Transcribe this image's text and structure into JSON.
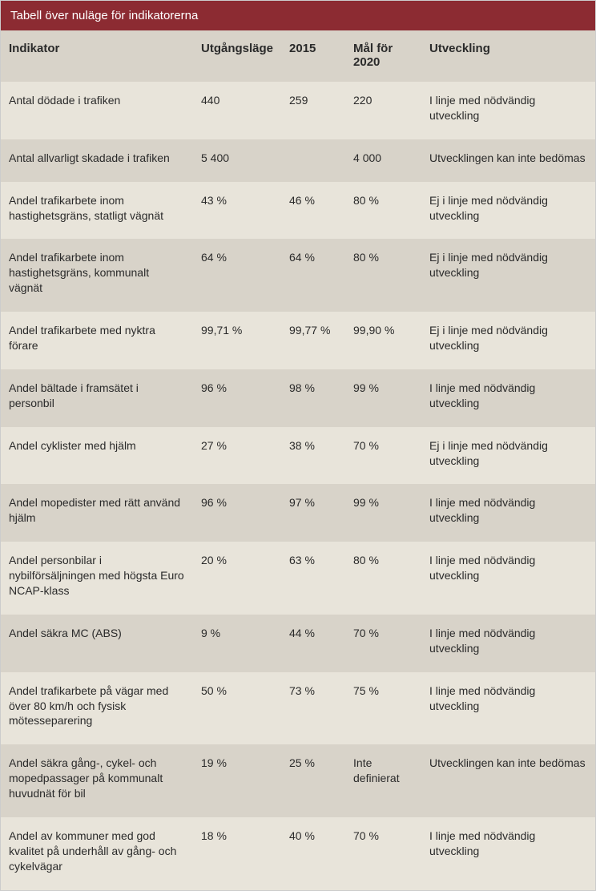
{
  "title": "Tabell över nuläge för indikatorerna",
  "colors": {
    "header_bg": "#8c2b32",
    "header_text": "#ffffff",
    "row_odd": "#e8e4da",
    "row_even": "#d8d3c9",
    "text": "#2a2a2a"
  },
  "columns": {
    "indicator": "Indikator",
    "baseline": "Utgångsläge",
    "y2015": "2015",
    "goal": "Mål för 2020",
    "development": "Utveckling"
  },
  "rows": [
    {
      "indicator": "Antal dödade i trafiken",
      "baseline": "440",
      "y2015": "259",
      "goal": "220",
      "development": "I linje med nödvändig utveckling"
    },
    {
      "indicator": "Antal allvarligt skadade i trafiken",
      "baseline": "5 400",
      "y2015": "",
      "goal": "4 000",
      "development": "Utvecklingen kan inte bedömas"
    },
    {
      "indicator": "Andel trafikarbete inom hastighetsgräns, statligt vägnät",
      "baseline": "43 %",
      "y2015": "46 %",
      "goal": "80 %",
      "development": "Ej i linje med nödvändig utveckling"
    },
    {
      "indicator": "Andel trafikarbete inom hastighetsgräns, kommunalt vägnät",
      "baseline": "64 %",
      "y2015": "64 %",
      "goal": "80 %",
      "development": "Ej i linje med nödvändig utveckling"
    },
    {
      "indicator": "Andel trafikarbete med nyktra förare",
      "baseline": "99,71 %",
      "y2015": "99,77 %",
      "goal": "99,90 %",
      "development": "Ej i linje med nödvändig utveckling"
    },
    {
      "indicator": "Andel bältade i framsätet i personbil",
      "baseline": "96 %",
      "y2015": "98 %",
      "goal": "99 %",
      "development": "I linje med nödvändig utveckling"
    },
    {
      "indicator": "Andel cyklister med hjälm",
      "baseline": "27 %",
      "y2015": "38 %",
      "goal": "70 %",
      "development": "Ej i linje med nödvändig utveckling"
    },
    {
      "indicator": "Andel mopedister med rätt använd hjälm",
      "baseline": "96 %",
      "y2015": "97 %",
      "goal": "99 %",
      "development": "I linje med nödvändig utveckling"
    },
    {
      "indicator": "Andel personbilar i nybilförsäljningen med högsta Euro NCAP-klass",
      "baseline": "20 %",
      "y2015": "63 %",
      "goal": "80 %",
      "development": "I linje med nödvändig utveckling"
    },
    {
      "indicator": "Andel säkra MC (ABS)",
      "baseline": "9 %",
      "y2015": "44 %",
      "goal": "70 %",
      "development": "I linje med nödvändig utveckling"
    },
    {
      "indicator": "Andel trafikarbete på vägar med över 80 km/h och fysisk mötesseparering",
      "baseline": "50 %",
      "y2015": "73 %",
      "goal": "75 %",
      "development": "I linje med nödvändig utveckling"
    },
    {
      "indicator": "Andel säkra gång-, cykel- och mopedpassager på kommunalt huvudnät för bil",
      "baseline": "19 %",
      "y2015": "25 %",
      "goal": "Inte definierat",
      "development": "Utvecklingen kan inte bedömas"
    },
    {
      "indicator": "Andel av kommuner med god kvalitet på underhåll av gång- och cykelvägar",
      "baseline": "18 %",
      "y2015": "40 %",
      "goal": "70 %",
      "development": "I linje med nödvändig utveckling"
    }
  ]
}
